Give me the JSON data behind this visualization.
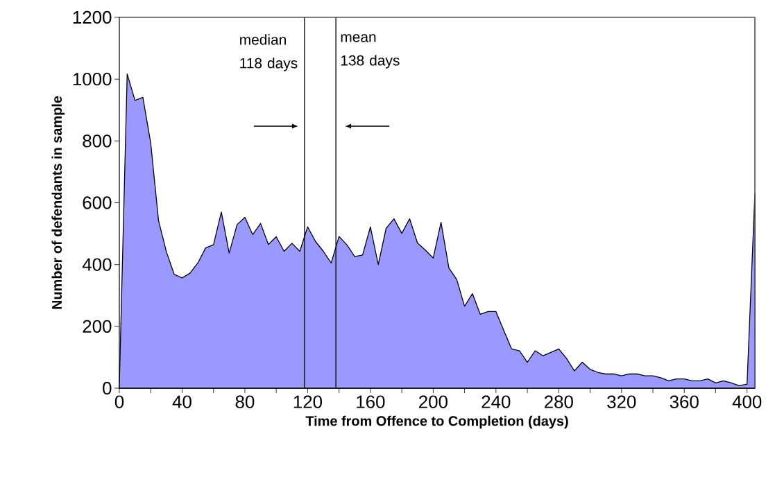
{
  "chart_data": {
    "type": "area",
    "xlabel": "Time from Offence to Completion (days)",
    "ylabel": "Number of defendants in sample",
    "x": [
      0,
      5,
      10,
      15,
      20,
      25,
      30,
      35,
      40,
      45,
      50,
      55,
      60,
      65,
      70,
      75,
      80,
      85,
      90,
      95,
      100,
      105,
      110,
      115,
      120,
      125,
      130,
      135,
      140,
      145,
      150,
      155,
      160,
      165,
      170,
      175,
      180,
      185,
      190,
      195,
      200,
      205,
      210,
      215,
      220,
      225,
      230,
      235,
      240,
      245,
      250,
      255,
      260,
      265,
      270,
      275,
      280,
      285,
      290,
      295,
      300,
      305,
      310,
      315,
      320,
      325,
      330,
      335,
      340,
      345,
      350,
      355,
      360,
      365,
      370,
      375,
      380,
      385,
      390,
      395,
      400,
      405
    ],
    "series": [
      {
        "color": "#9999ff",
        "values": [
          10,
          1017,
          931,
          941,
          793,
          542,
          441,
          368,
          357,
          372,
          405,
          454,
          464,
          570,
          437,
          529,
          553,
          497,
          533,
          465,
          490,
          443,
          469,
          443,
          522,
          475,
          443,
          405,
          491,
          464,
          426,
          431,
          522,
          400,
          517,
          548,
          501,
          548,
          470,
          447,
          421,
          537,
          389,
          352,
          265,
          306,
          239,
          248,
          248,
          187,
          127,
          121,
          84,
          121,
          105,
          116,
          127,
          96,
          56,
          84,
          61,
          51,
          46,
          46,
          40,
          46,
          46,
          40,
          40,
          34,
          24,
          30,
          30,
          24,
          24,
          30,
          17,
          24,
          17,
          8,
          13,
          630
        ]
      }
    ],
    "xlim": [
      0,
      405
    ],
    "ylim": [
      0,
      1200
    ],
    "xticks": [
      0,
      {
        "value": 20,
        "label": null
      },
      40,
      {
        "value": 60,
        "label": null
      },
      80,
      {
        "value": 100,
        "label": null
      },
      120,
      {
        "value": 140,
        "label": null
      },
      160,
      {
        "value": 180,
        "label": null
      },
      200,
      {
        "value": 220,
        "label": null
      },
      240,
      {
        "value": 260,
        "label": null
      },
      280,
      {
        "value": 300,
        "label": null
      },
      320,
      {
        "value": 340,
        "label": null
      },
      360,
      {
        "value": 380,
        "label": null
      },
      400
    ],
    "yticks": [
      0,
      200,
      400,
      600,
      800,
      1000,
      1200
    ],
    "ref_lines": [
      {
        "axis": "x",
        "value": 118,
        "label": "median 118 days"
      },
      {
        "axis": "x",
        "value": 138,
        "label": "mean 138 days"
      }
    ],
    "grid": false,
    "marker": "none",
    "line_style": "solid"
  }
}
